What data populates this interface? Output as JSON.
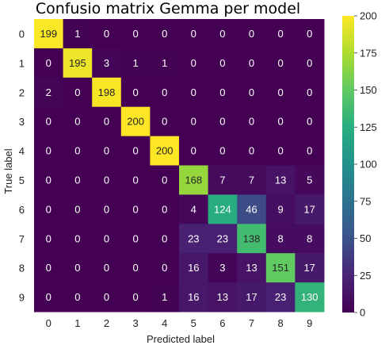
{
  "chart_data": {
    "type": "heatmap",
    "title": "Confusio matrix Gemma per model",
    "xlabel": "Predicted label",
    "ylabel": "True label",
    "x_categories": [
      "0",
      "1",
      "2",
      "3",
      "4",
      "5",
      "6",
      "7",
      "8",
      "9"
    ],
    "y_categories": [
      "0",
      "1",
      "2",
      "3",
      "4",
      "5",
      "6",
      "7",
      "8",
      "9"
    ],
    "values": [
      [
        199,
        1,
        0,
        0,
        0,
        0,
        0,
        0,
        0,
        0
      ],
      [
        0,
        195,
        3,
        1,
        1,
        0,
        0,
        0,
        0,
        0
      ],
      [
        2,
        0,
        198,
        0,
        0,
        0,
        0,
        0,
        0,
        0
      ],
      [
        0,
        0,
        0,
        200,
        0,
        0,
        0,
        0,
        0,
        0
      ],
      [
        0,
        0,
        0,
        0,
        200,
        0,
        0,
        0,
        0,
        0
      ],
      [
        0,
        0,
        0,
        0,
        0,
        168,
        7,
        7,
        13,
        5
      ],
      [
        0,
        0,
        0,
        0,
        0,
        4,
        124,
        46,
        9,
        17
      ],
      [
        0,
        0,
        0,
        0,
        0,
        23,
        23,
        138,
        8,
        8
      ],
      [
        0,
        0,
        0,
        0,
        0,
        16,
        3,
        13,
        151,
        17
      ],
      [
        0,
        0,
        0,
        0,
        1,
        16,
        13,
        17,
        23,
        130
      ]
    ],
    "colorbar": {
      "min": 0,
      "max": 200,
      "ticks": [
        0,
        25,
        50,
        75,
        100,
        125,
        150,
        175,
        200
      ]
    },
    "colormap": "viridis",
    "grid": false
  }
}
